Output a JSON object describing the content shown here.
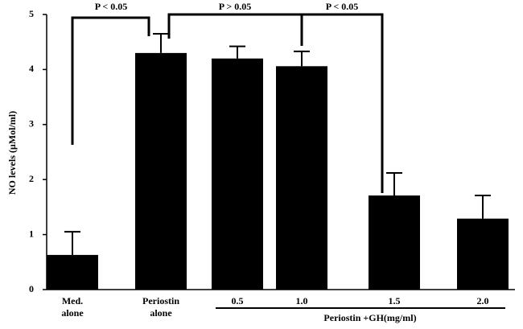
{
  "chart_data": {
    "type": "bar",
    "y_label": "NO levels  (µMol/ml)",
    "categories": [
      "Med. alone",
      "Periostin alone",
      "0.5",
      "1.0",
      "1.5",
      "2.0"
    ],
    "values": [
      0.63,
      4.3,
      4.2,
      4.06,
      1.71,
      1.29
    ],
    "errors": [
      0.42,
      0.35,
      0.22,
      0.27,
      0.41,
      0.42
    ],
    "color": "#000000",
    "group_label": "Periostin +GH(mg/ml)",
    "annotations": [
      "P < 0.05",
      "P > 0.05",
      "P < 0.05"
    ],
    "ylim": [
      0,
      5
    ],
    "yticks": [
      0,
      1,
      2,
      3,
      4,
      5
    ]
  }
}
